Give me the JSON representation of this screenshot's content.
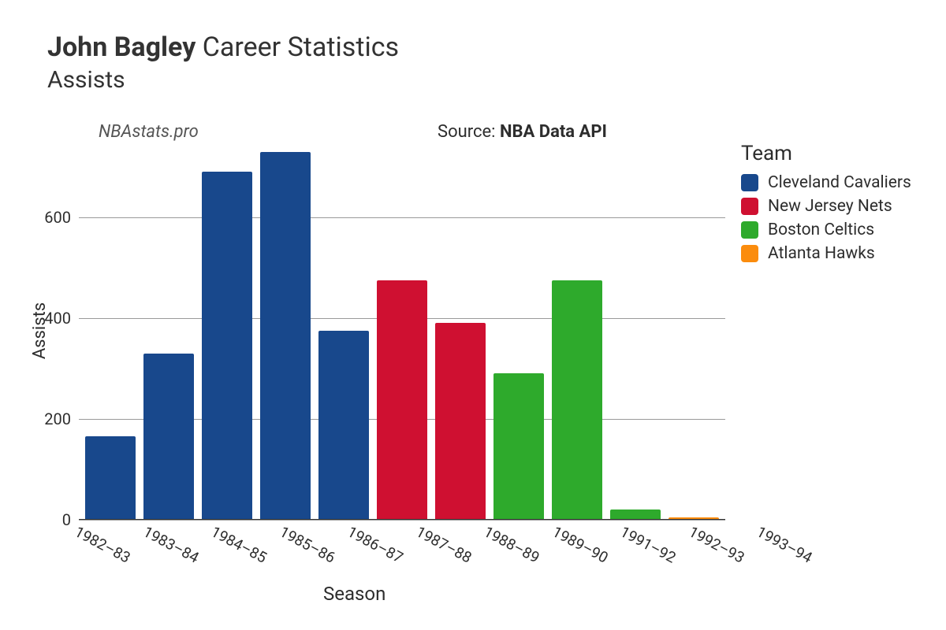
{
  "title": {
    "player_name": "John Bagley",
    "suffix": "Career Statistics",
    "stat_name": "Assists"
  },
  "watermark": "NBAstats.pro",
  "source": {
    "prefix": "Source: ",
    "name": "NBA Data API"
  },
  "chart": {
    "type": "bar",
    "ylabel": "Assists",
    "xlabel": "Season",
    "ylim": [
      0,
      750
    ],
    "ytick_step": 200,
    "yticks": [
      0,
      200,
      400,
      600
    ],
    "background_color": "#ffffff",
    "grid_color": "#9a9a9a",
    "axis_font_size": 20,
    "label_font_size": 22,
    "bar_width": 0.88,
    "seasons": [
      {
        "label": "1982–83",
        "value": 165,
        "team": "Cleveland Cavaliers"
      },
      {
        "label": "1983–84",
        "value": 330,
        "team": "Cleveland Cavaliers"
      },
      {
        "label": "1984–85",
        "value": 690,
        "team": "Cleveland Cavaliers"
      },
      {
        "label": "1985–86",
        "value": 730,
        "team": "Cleveland Cavaliers"
      },
      {
        "label": "1986–87",
        "value": 375,
        "team": "Cleveland Cavaliers"
      },
      {
        "label": "1987–88",
        "value": 475,
        "team": "New Jersey Nets"
      },
      {
        "label": "1988–89",
        "value": 390,
        "team": "New Jersey Nets"
      },
      {
        "label": "1989–90",
        "value": 290,
        "team": "Boston Celtics"
      },
      {
        "label": "1991–92",
        "value": 475,
        "team": "Boston Celtics"
      },
      {
        "label": "1992–93",
        "value": 20,
        "team": "Boston Celtics"
      },
      {
        "label": "1993–94",
        "value": 5,
        "team": "Atlanta Hawks"
      }
    ]
  },
  "legend": {
    "title": "Team",
    "teams": [
      {
        "name": "Cleveland Cavaliers",
        "color": "#18488c"
      },
      {
        "name": "New Jersey Nets",
        "color": "#cf1031"
      },
      {
        "name": "Boston Celtics",
        "color": "#2eaa2c"
      },
      {
        "name": "Atlanta Hawks",
        "color": "#fb8c0d"
      }
    ]
  }
}
